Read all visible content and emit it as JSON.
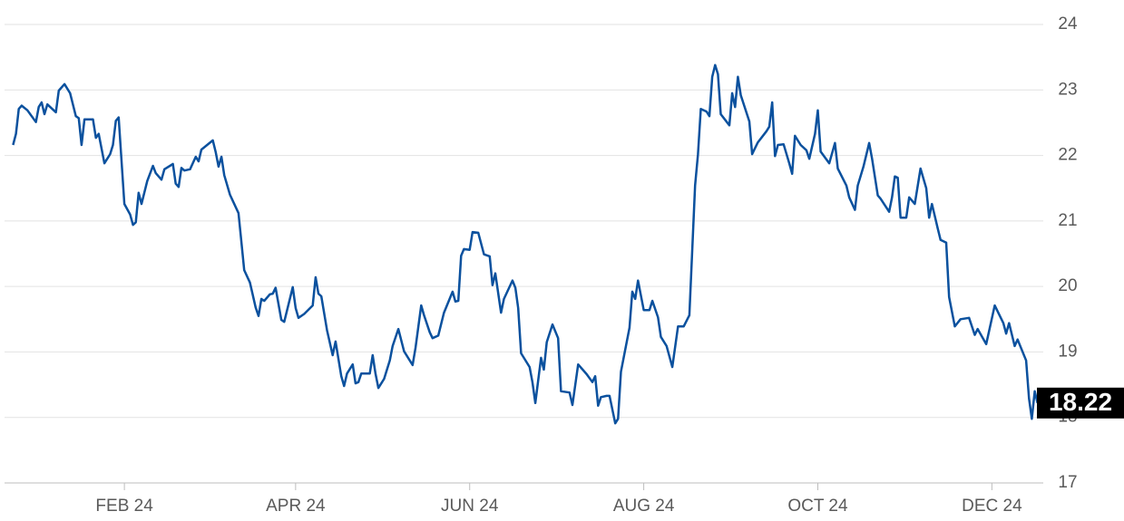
{
  "chart_data": {
    "type": "line",
    "x": [
      -8,
      -7,
      -6,
      -5,
      -3,
      0,
      1,
      2,
      3,
      4,
      7,
      8,
      10,
      12,
      14,
      15,
      16,
      17,
      20,
      21,
      22,
      24,
      26,
      27,
      28,
      29,
      31,
      33,
      34,
      35,
      36,
      37,
      39,
      41,
      42,
      44,
      45,
      48,
      49,
      50,
      51,
      52,
      54,
      56,
      57,
      58,
      62,
      63,
      64,
      65,
      66,
      68,
      71,
      73,
      75,
      77,
      78,
      79,
      80,
      82,
      83,
      84,
      86,
      87,
      90,
      91,
      92,
      94,
      97,
      98,
      99,
      100,
      102,
      104,
      105,
      107,
      108,
      109,
      111,
      112,
      113,
      114,
      117,
      118,
      119,
      120,
      122,
      124,
      125,
      127,
      129,
      132,
      133,
      135,
      136,
      138,
      139,
      141,
      143,
      146,
      147,
      148,
      149,
      150,
      152,
      153,
      155,
      157,
      159,
      160,
      161,
      163,
      164,
      167,
      168,
      169,
      170,
      173,
      174,
      175,
      177,
      178,
      179,
      181,
      183,
      184,
      187,
      188,
      190,
      193,
      195,
      196,
      197,
      198,
      200,
      201,
      203,
      204,
      205,
      208,
      209,
      210,
      211,
      213,
      215,
      216,
      218,
      219,
      221,
      223,
      225,
      227,
      229,
      231,
      232,
      233,
      235,
      236,
      237,
      238,
      239,
      240,
      243,
      244,
      245,
      246,
      247,
      250,
      251,
      253,
      256,
      257,
      258,
      259,
      260,
      262,
      264,
      265,
      266,
      268,
      270,
      271,
      273,
      274,
      275,
      278,
      280,
      281,
      284,
      285,
      287,
      288,
      290,
      292,
      293,
      295,
      296,
      299,
      300,
      301,
      302,
      303,
      305,
      306,
      308,
      310,
      312,
      313,
      314,
      316,
      317,
      319,
      320,
      322,
      324,
      327,
      329,
      330,
      333,
      336,
      339,
      340,
      341,
      343,
      344,
      347,
      348,
      349,
      350,
      351
    ],
    "series": [
      {
        "color": "#0b519e",
        "values": [
          22.16,
          22.33,
          22.71,
          22.76,
          22.69,
          22.51,
          22.74,
          22.81,
          22.63,
          22.78,
          22.66,
          22.99,
          23.09,
          22.95,
          22.6,
          22.57,
          22.16,
          22.55,
          22.55,
          22.27,
          22.33,
          21.88,
          22.02,
          22.16,
          22.53,
          22.58,
          21.26,
          21.1,
          20.94,
          20.98,
          21.43,
          21.26,
          21.61,
          21.84,
          21.73,
          21.63,
          21.79,
          21.87,
          21.57,
          21.52,
          21.81,
          21.77,
          21.79,
          21.98,
          21.91,
          22.09,
          22.23,
          22.05,
          21.83,
          21.98,
          21.7,
          21.4,
          21.12,
          20.25,
          20.06,
          19.68,
          19.55,
          19.81,
          19.78,
          19.88,
          19.89,
          19.98,
          19.49,
          19.46,
          19.99,
          19.67,
          19.52,
          19.58,
          19.71,
          20.14,
          19.89,
          19.85,
          19.33,
          18.95,
          19.16,
          18.63,
          18.48,
          18.67,
          18.81,
          18.52,
          18.54,
          18.67,
          18.67,
          18.95,
          18.67,
          18.45,
          18.59,
          18.87,
          19.09,
          19.35,
          19.01,
          18.8,
          19.06,
          19.71,
          19.56,
          19.3,
          19.21,
          19.25,
          19.6,
          19.92,
          19.77,
          19.78,
          20.47,
          20.57,
          20.56,
          20.83,
          20.82,
          20.49,
          20.46,
          20.02,
          20.2,
          19.6,
          19.81,
          20.09,
          19.98,
          19.67,
          18.98,
          18.77,
          18.54,
          18.22,
          18.91,
          18.73,
          19.15,
          19.42,
          19.21,
          18.4,
          18.38,
          18.19,
          18.81,
          18.66,
          18.54,
          18.63,
          18.18,
          18.31,
          18.33,
          18.33,
          17.91,
          17.98,
          18.7,
          19.37,
          19.92,
          19.81,
          20.09,
          19.64,
          19.64,
          19.78,
          19.53,
          19.23,
          19.09,
          18.77,
          19.39,
          19.39,
          19.56,
          21.54,
          22.02,
          22.71,
          22.67,
          22.6,
          23.2,
          23.38,
          23.24,
          22.63,
          22.46,
          22.95,
          22.74,
          23.2,
          22.92,
          22.52,
          22.02,
          22.2,
          22.37,
          22.44,
          22.81,
          21.99,
          22.16,
          22.17,
          21.88,
          21.72,
          22.3,
          22.16,
          22.08,
          21.95,
          22.33,
          22.69,
          22.06,
          21.88,
          22.19,
          21.8,
          21.54,
          21.36,
          21.17,
          21.54,
          21.83,
          22.19,
          21.95,
          21.39,
          21.34,
          21.14,
          21.36,
          21.68,
          21.66,
          21.05,
          21.05,
          21.36,
          21.26,
          21.8,
          21.5,
          21.05,
          21.26,
          20.89,
          20.71,
          20.67,
          19.84,
          19.39,
          19.5,
          19.52,
          19.26,
          19.35,
          19.12,
          19.71,
          19.44,
          19.28,
          19.44,
          19.09,
          19.19,
          18.87,
          18.29,
          17.98,
          18.4,
          18.22
        ]
      }
    ],
    "last_value": 18.22,
    "xlim": [
      -11,
      353
    ],
    "xticks": [
      {
        "value": 31,
        "label": "FEB 24"
      },
      {
        "value": 91,
        "label": "APR 24"
      },
      {
        "value": 152,
        "label": "JUN 24"
      },
      {
        "value": 213,
        "label": "AUG 24"
      },
      {
        "value": 274,
        "label": "OCT 24"
      },
      {
        "value": 335,
        "label": "DEC 24"
      }
    ],
    "ylim": [
      17,
      24
    ],
    "yticks": [
      17,
      18,
      19,
      20,
      21,
      22,
      23,
      24
    ],
    "grid": true
  }
}
